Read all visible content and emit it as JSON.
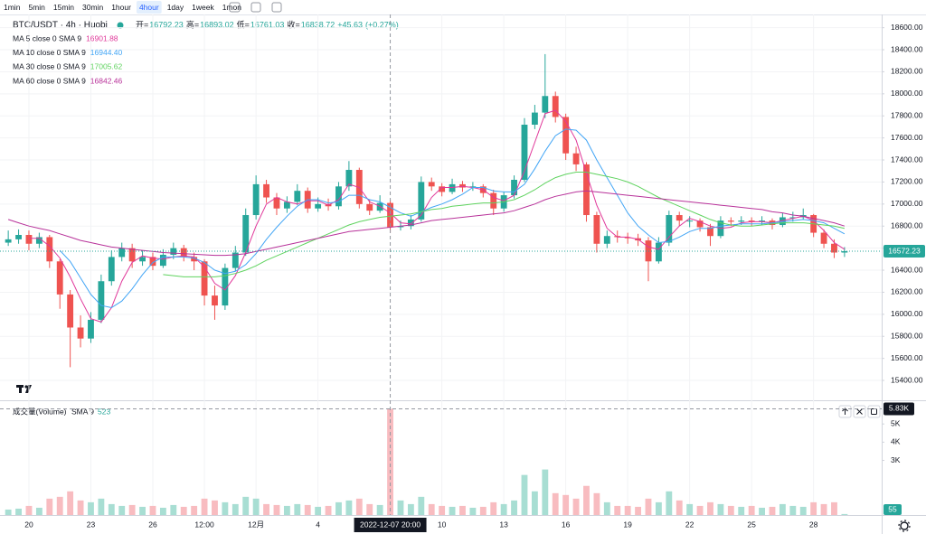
{
  "toolbar": {
    "intervals": [
      "1min",
      "5min",
      "15min",
      "30min",
      "1hour",
      "4hour",
      "1day",
      "1week",
      "1mon"
    ],
    "active": 5
  },
  "header": {
    "symbol": "BTC/USDT · 4h · Huobi",
    "fields": [
      {
        "label": "开=",
        "value": 16792.23
      },
      {
        "label": "高=",
        "value": 16893.02
      },
      {
        "label": "低=",
        "value": 16761.03
      },
      {
        "label": "收=",
        "value": 16838.72
      }
    ],
    "change": {
      "value": 45.63,
      "label": "+45.63"
    },
    "change_pct": {
      "value": 0.27,
      "label": "(+0.27%)"
    }
  },
  "chart_data": {
    "type": "candlestick",
    "up_color": "#26a69a",
    "down_color": "#ef5350",
    "grid": true,
    "xlim": [
      -0.8,
      84.6
    ],
    "ylim": [
      15220,
      18720
    ],
    "xticks": [
      {
        "value": 2,
        "label": "20"
      },
      {
        "value": 8,
        "label": "23"
      },
      {
        "value": 14,
        "label": "26"
      },
      {
        "value": 19,
        "label": "12:00"
      },
      {
        "value": 24,
        "label": "12月"
      },
      {
        "value": 30,
        "label": "4"
      },
      {
        "value": 42,
        "label": "10"
      },
      {
        "value": 48,
        "label": "13"
      },
      {
        "value": 54,
        "label": "16"
      },
      {
        "value": 60,
        "label": "19"
      },
      {
        "value": 66,
        "label": "22"
      },
      {
        "value": 72,
        "label": "25"
      },
      {
        "value": 78,
        "label": "28"
      }
    ],
    "yticks": [
      {
        "value": 15400,
        "label": "15400.00"
      },
      {
        "value": 15600,
        "label": "15600.00"
      },
      {
        "value": 15800,
        "label": "15800.00"
      },
      {
        "value": 16000,
        "label": "16000.00"
      },
      {
        "value": 16200,
        "label": "16200.00"
      },
      {
        "value": 16400,
        "label": "16400.00"
      },
      {
        "value": 16600,
        "label": "16600.00"
      },
      {
        "value": 16800,
        "label": "16800.00"
      },
      {
        "value": 17000,
        "label": "17000.00"
      },
      {
        "value": 17200,
        "label": "17200.00"
      },
      {
        "value": 17400,
        "label": "17400.00"
      },
      {
        "value": 17600,
        "label": "17600.00"
      },
      {
        "value": 17800,
        "label": "17800.00"
      },
      {
        "value": 18000,
        "label": "18000.00"
      },
      {
        "value": 18200,
        "label": "18200.00"
      },
      {
        "value": 18400,
        "label": "18400.00"
      },
      {
        "value": 18600,
        "label": "18600.00"
      }
    ],
    "open": [
      16650,
      16680,
      16720,
      16640,
      16700,
      16480,
      16180,
      15880,
      15780,
      15950,
      16300,
      16520,
      16600,
      16480,
      16520,
      16440,
      16540,
      16600,
      16520,
      16480,
      16170,
      16080,
      16420,
      16560,
      16900,
      17180,
      17060,
      16960,
      17020,
      17120,
      16960,
      17000,
      16980,
      17160,
      17310,
      17000,
      16940,
      17010,
      16790,
      16800,
      16860,
      17200,
      17160,
      17110,
      17180,
      17150,
      17160,
      17100,
      16960,
      17080,
      17220,
      17720,
      17830,
      17980,
      17790,
      17460,
      17360,
      16900,
      16640,
      16710,
      16700,
      16690,
      16670,
      16480,
      16650,
      16900,
      16850,
      16850,
      16790,
      16710,
      16850,
      16840,
      16850,
      16840,
      16850,
      16810,
      16880,
      16880,
      16900,
      16740,
      16640,
      16560
    ],
    "high": [
      16760,
      16770,
      16760,
      16740,
      16720,
      16500,
      16220,
      15990,
      16020,
      16360,
      16580,
      16650,
      16640,
      16580,
      16560,
      16590,
      16650,
      16630,
      16560,
      16500,
      16260,
      16460,
      16620,
      16960,
      17260,
      17220,
      17100,
      17070,
      17180,
      17150,
      17060,
      17050,
      17200,
      17390,
      17330,
      17040,
      17080,
      17040,
      16850,
      16900,
      17250,
      17240,
      17190,
      17230,
      17210,
      17200,
      17180,
      17130,
      17110,
      17260,
      17780,
      17900,
      18360,
      18020,
      17820,
      17520,
      17380,
      16930,
      16760,
      16760,
      16740,
      16730,
      16700,
      16700,
      16940,
      16930,
      16890,
      16870,
      16820,
      16890,
      16880,
      16890,
      16880,
      16890,
      16870,
      16920,
      16930,
      16960,
      16910,
      16770,
      16680,
      16610
    ],
    "low": [
      16620,
      16640,
      16580,
      16600,
      16420,
      16050,
      15520,
      15700,
      15740,
      15920,
      16260,
      16480,
      16420,
      16440,
      16400,
      16420,
      16500,
      16480,
      16400,
      16080,
      15950,
      16040,
      16390,
      16530,
      16860,
      17010,
      16900,
      16920,
      16990,
      16920,
      16930,
      16940,
      16950,
      17120,
      16960,
      16900,
      16920,
      16740,
      16760,
      16770,
      16840,
      17120,
      17070,
      17090,
      17110,
      17120,
      17060,
      16900,
      16930,
      17050,
      17200,
      17680,
      17780,
      17740,
      17400,
      17300,
      16840,
      16560,
      16600,
      16650,
      16640,
      16620,
      16300,
      16460,
      16620,
      16800,
      16790,
      16750,
      16620,
      16690,
      16800,
      16810,
      16800,
      16810,
      16770,
      16790,
      16840,
      16860,
      16700,
      16600,
      16510,
      16520
    ],
    "close": [
      16680,
      16720,
      16640,
      16700,
      16480,
      16180,
      15880,
      15780,
      15950,
      16300,
      16520,
      16600,
      16480,
      16520,
      16440,
      16540,
      16600,
      16520,
      16480,
      16170,
      16080,
      16420,
      16560,
      16900,
      17180,
      17060,
      16960,
      17020,
      17120,
      16960,
      17000,
      16980,
      17160,
      17310,
      17000,
      16940,
      17010,
      16790,
      16800,
      16860,
      17200,
      17160,
      17110,
      17180,
      17150,
      17160,
      17100,
      16960,
      17080,
      17220,
      17720,
      17830,
      17980,
      17790,
      17460,
      17360,
      16900,
      16640,
      16710,
      16700,
      16690,
      16670,
      16480,
      16650,
      16900,
      16850,
      16850,
      16790,
      16710,
      16850,
      16840,
      16850,
      16840,
      16850,
      16810,
      16880,
      16880,
      16900,
      16740,
      16640,
      16560,
      16572.23
    ],
    "series": [
      {
        "name": "MA 5 close 0 SMA 9",
        "color": "#e0389a",
        "legend_value": 16901.88,
        "values": [
          null,
          null,
          16690,
          16690,
          16620,
          16510,
          16340,
          16140,
          15960,
          15930,
          16060,
          16300,
          16470,
          16530,
          16510,
          16500,
          16520,
          16530,
          16520,
          16430,
          16280,
          16220,
          16350,
          16560,
          16800,
          17000,
          17060,
          17020,
          17000,
          17030,
          17030,
          16990,
          17040,
          17180,
          17150,
          17020,
          16980,
          16920,
          16830,
          16820,
          16900,
          17060,
          17150,
          17150,
          17160,
          17150,
          17130,
          17060,
          17030,
          17080,
          17300,
          17560,
          17820,
          17850,
          17750,
          17580,
          17280,
          16990,
          16780,
          16700,
          16700,
          16680,
          16610,
          16590,
          16700,
          16800,
          16870,
          16840,
          16800,
          16780,
          16790,
          16830,
          16840,
          16840,
          16830,
          16850,
          16870,
          16890,
          16850,
          16760,
          16650,
          16590
        ]
      },
      {
        "name": "MA 10 close 0 SMA 9",
        "color": "#42a5f5",
        "legend_value": {
          "value": 16944.4,
          "label": "16944.40"
        },
        "values": [
          null,
          null,
          null,
          null,
          null,
          16580,
          16480,
          16330,
          16180,
          16080,
          16060,
          16120,
          16230,
          16360,
          16470,
          16520,
          16520,
          16520,
          16510,
          16470,
          16400,
          16370,
          16390,
          16450,
          16550,
          16680,
          16790,
          16890,
          16980,
          17040,
          17040,
          17010,
          17020,
          17080,
          17080,
          17040,
          17020,
          16970,
          16920,
          16890,
          16930,
          16970,
          17000,
          17040,
          17090,
          17150,
          17150,
          17120,
          17110,
          17110,
          17180,
          17320,
          17480,
          17620,
          17680,
          17670,
          17580,
          17400,
          17240,
          17080,
          16920,
          16800,
          16720,
          16650,
          16660,
          16700,
          16750,
          16780,
          16780,
          16800,
          16810,
          16820,
          16820,
          16820,
          16830,
          16840,
          16850,
          16860,
          16850,
          16830,
          16780,
          16730
        ]
      },
      {
        "name": "MA 30 close 0 SMA 9",
        "color": "#5fd35f",
        "legend_value": 17005.62,
        "values": [
          null,
          null,
          null,
          null,
          null,
          null,
          null,
          null,
          null,
          null,
          null,
          null,
          null,
          null,
          null,
          16360,
          16350,
          16340,
          16340,
          16340,
          16340,
          16350,
          16370,
          16400,
          16440,
          16490,
          16530,
          16570,
          16610,
          16650,
          16690,
          16730,
          16770,
          16810,
          16840,
          16860,
          16880,
          16890,
          16900,
          16910,
          16930,
          16950,
          16960,
          16980,
          16990,
          17000,
          17010,
          17010,
          17020,
          17040,
          17080,
          17130,
          17190,
          17240,
          17270,
          17290,
          17290,
          17270,
          17250,
          17230,
          17200,
          17160,
          17110,
          17060,
          17020,
          16980,
          16940,
          16900,
          16860,
          16830,
          16810,
          16800,
          16800,
          16810,
          16820,
          16830,
          16830,
          16830,
          16820,
          16810,
          16800,
          16780
        ]
      },
      {
        "name": "MA 60 close 0 SMA 9",
        "color": "#b8329a",
        "legend_value": 16842.46,
        "values": [
          16860,
          16830,
          16800,
          16780,
          16760,
          16730,
          16700,
          16670,
          16650,
          16630,
          16610,
          16600,
          16590,
          16580,
          16570,
          16560,
          16555,
          16550,
          16545,
          16540,
          16535,
          16535,
          16540,
          16550,
          16570,
          16590,
          16610,
          16630,
          16650,
          16670,
          16690,
          16710,
          16730,
          16750,
          16760,
          16770,
          16780,
          16790,
          16800,
          16810,
          16830,
          16850,
          16860,
          16870,
          16880,
          16890,
          16900,
          16910,
          16920,
          16940,
          16970,
          17000,
          17040,
          17070,
          17090,
          17110,
          17120,
          17110,
          17100,
          17090,
          17080,
          17070,
          17060,
          17050,
          17040,
          17030,
          17020,
          17010,
          17000,
          16990,
          16980,
          16970,
          16960,
          16950,
          16930,
          16920,
          16900,
          16890,
          16870,
          16850,
          16830,
          16800
        ]
      }
    ],
    "volume": {
      "name": "成交量(Volume)",
      "sma_label": "SMA 9",
      "sma_value": 523,
      "up_color": "#a8ded3",
      "down_color": "#f8bcc0",
      "values": [
        300,
        350,
        500,
        400,
        900,
        1000,
        1300,
        800,
        700,
        900,
        600,
        500,
        550,
        450,
        500,
        400,
        550,
        450,
        500,
        900,
        800,
        700,
        600,
        1000,
        900,
        600,
        550,
        500,
        600,
        550,
        450,
        500,
        700,
        800,
        900,
        600,
        550,
        5830,
        800,
        600,
        1000,
        600,
        500,
        450,
        500,
        400,
        450,
        700,
        600,
        800,
        2200,
        1300,
        2500,
        1200,
        1100,
        900,
        1600,
        1200,
        700,
        500,
        500,
        450,
        900,
        700,
        1300,
        800,
        600,
        500,
        700,
        600,
        500,
        450,
        500,
        400,
        450,
        600,
        500,
        450,
        700,
        600,
        700,
        55
      ]
    },
    "y2lim": [
      0,
      6200
    ],
    "y2ticks": [
      {
        "value": 3000,
        "label": "3K"
      },
      {
        "value": 4000,
        "label": "4K"
      },
      {
        "value": 5000,
        "label": "5K"
      }
    ],
    "crosshair": {
      "x": 37,
      "x_label": "2022-12-07 20:00",
      "y2_label": "5.83K"
    }
  }
}
